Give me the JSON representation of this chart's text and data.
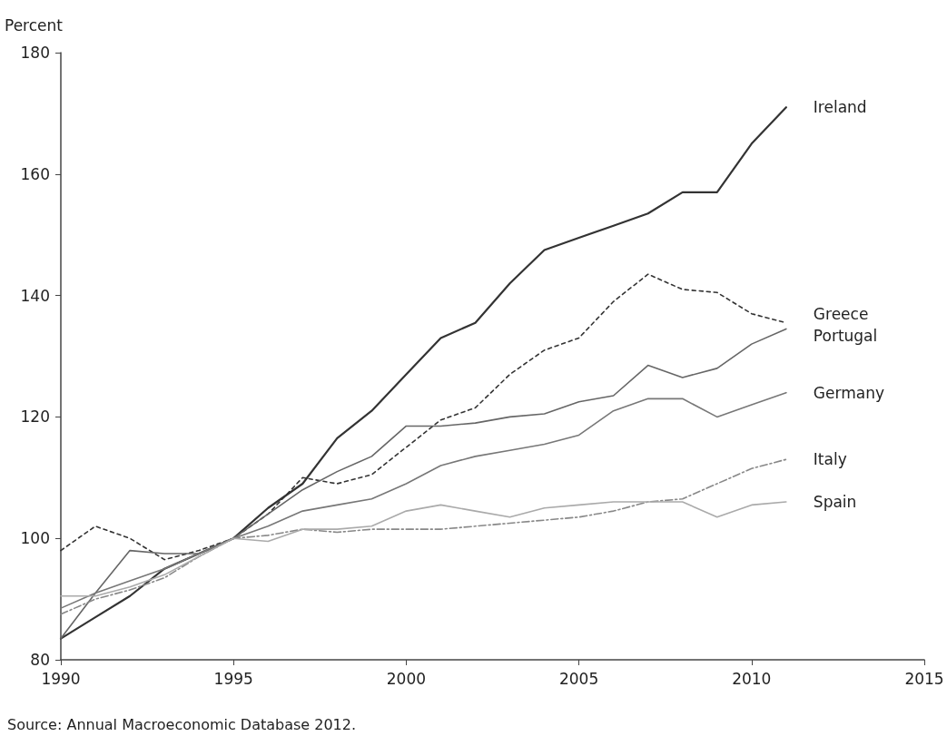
{
  "chart_data": {
    "type": "line",
    "ylabel": "Percent",
    "annotations": [
      "Source: Annual Macroeconomic Database 2012."
    ],
    "x": [
      1990,
      1991,
      1992,
      1993,
      1994,
      1995,
      1996,
      1997,
      1998,
      1999,
      2000,
      2001,
      2002,
      2003,
      2004,
      2005,
      2006,
      2007,
      2008,
      2009,
      2010,
      2011
    ],
    "xlim": [
      1990,
      2015
    ],
    "xticks": [
      1990,
      1995,
      2000,
      2005,
      2010,
      2015
    ],
    "ylim": [
      80,
      180
    ],
    "yticks": [
      80,
      100,
      120,
      140,
      160,
      180
    ],
    "grid": false,
    "legend": false,
    "marker": "none",
    "series": [
      {
        "name": "Ireland",
        "color": "#333333",
        "line_style": "solid",
        "values": [
          83.5,
          87,
          90.5,
          95,
          97.5,
          100,
          105,
          109,
          116.5,
          121,
          127,
          133,
          135.5,
          142,
          147.5,
          149.5,
          151.5,
          153.5,
          157,
          157,
          165,
          171
        ]
      },
      {
        "name": "Greece",
        "color": "#333333",
        "line_style": "dotted",
        "values": [
          98,
          102,
          100,
          96.5,
          98,
          100,
          104,
          110,
          109,
          110.5,
          115,
          119.5,
          121.5,
          127,
          131,
          133,
          139,
          143.5,
          141,
          140.5,
          137,
          135.5
        ]
      },
      {
        "name": "Portugal",
        "color": "#666666",
        "line_style": "solid",
        "values": [
          83.5,
          91,
          98,
          97.5,
          97.5,
          100,
          104,
          108,
          111,
          113.5,
          118.5,
          118.5,
          119,
          120,
          120.5,
          122.5,
          123.5,
          128.5,
          126.5,
          128,
          132,
          134.5
        ]
      },
      {
        "name": "Germany",
        "color": "#777777",
        "line_style": "solid",
        "values": [
          88.5,
          91,
          93,
          95,
          97.5,
          100,
          102,
          104.5,
          105.5,
          106.5,
          109,
          112,
          113.5,
          114.5,
          115.5,
          117,
          121,
          123,
          123,
          120,
          122,
          124
        ]
      },
      {
        "name": "Italy",
        "color": "#888888",
        "line_style": "dashed",
        "values": [
          87.5,
          90,
          91.5,
          93.5,
          97,
          100,
          100.5,
          101.5,
          101,
          101.5,
          101.5,
          101.5,
          102,
          102.5,
          103,
          103.5,
          104.5,
          106,
          106.5,
          109,
          111.5,
          113
        ]
      },
      {
        "name": "Spain",
        "color": "#aaaaaa",
        "line_style": "solid",
        "values": [
          90.5,
          90.5,
          92,
          94,
          97,
          100,
          99.5,
          101.5,
          101.5,
          102,
          104.5,
          105.5,
          104.5,
          103.5,
          105,
          105.5,
          106,
          106,
          106,
          103.5,
          105.5,
          106
        ]
      }
    ]
  }
}
